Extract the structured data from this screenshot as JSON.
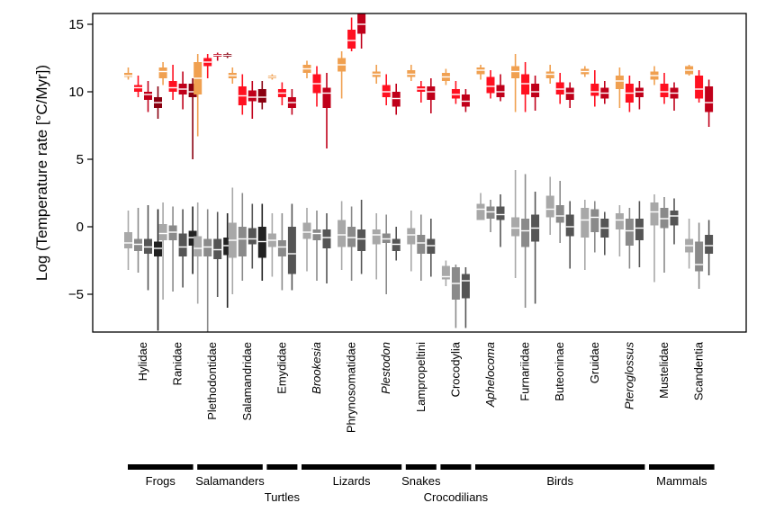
{
  "chart_data": {
    "type": "box",
    "title": "",
    "ylabel": "Log (Temperature rate [°C/Myr])",
    "ylim": [
      -7.8,
      15.8
    ],
    "yticks": [
      -5,
      0,
      5,
      10,
      15
    ],
    "grid": false,
    "colors": {
      "upper": [
        "#f0a050",
        "#ff1020",
        "#c0001a",
        "#8a0010"
      ],
      "lower": [
        "#a8a8a8",
        "#8a8a8a",
        "#555555",
        "#222222"
      ]
    },
    "categories": [
      {
        "label": "Hylidae",
        "italic": false,
        "upper": [
          [
            10.9,
            11.1,
            11.2,
            11.4,
            11.8
          ],
          [
            9.6,
            10.0,
            10.3,
            10.5,
            11.2
          ],
          [
            8.5,
            9.4,
            9.8,
            10.0,
            10.8
          ],
          [
            8.0,
            8.8,
            9.2,
            9.6,
            10.4
          ]
        ],
        "lower": [
          [
            -3.2,
            -1.6,
            -1.2,
            -0.4,
            1.2
          ],
          [
            -3.4,
            -1.8,
            -1.3,
            -0.9,
            1.4
          ],
          [
            -4.7,
            -2.0,
            -1.5,
            -0.9,
            1.6
          ],
          [
            -7.7,
            -2.2,
            -1.6,
            -1.1,
            1.3
          ]
        ]
      },
      {
        "label": "Ranidae",
        "italic": false,
        "upper": [
          [
            10.5,
            11.0,
            11.5,
            11.8,
            12.2
          ],
          [
            9.4,
            10.0,
            10.3,
            10.8,
            12.0
          ],
          [
            8.7,
            9.8,
            10.2,
            10.6,
            11.5
          ],
          [
            5.0,
            9.6,
            10.0,
            10.6,
            11.0
          ]
        ],
        "lower": [
          [
            -5.4,
            -1.0,
            -0.5,
            0.2,
            1.8
          ],
          [
            -4.8,
            -1.0,
            -0.4,
            0.1,
            1.5
          ],
          [
            -4.5,
            -2.2,
            -1.5,
            -0.5,
            1.3
          ],
          [
            -3.5,
            -1.4,
            -0.8,
            -0.3,
            1.5
          ]
        ]
      },
      {
        "label": "Plethodontidae",
        "italic": false,
        "upper": [
          [
            6.7,
            9.8,
            11.0,
            12.2,
            12.8
          ],
          [
            11.0,
            11.9,
            12.2,
            12.5,
            12.8
          ],
          [
            12.3,
            12.6,
            12.7,
            12.8,
            12.9
          ],
          [
            12.5,
            12.6,
            12.7,
            12.8,
            12.9
          ]
        ],
        "lower": [
          [
            -5.7,
            -2.2,
            -1.6,
            -0.7,
            1.8
          ],
          [
            -7.9,
            -2.2,
            -1.5,
            -0.9,
            1.3
          ],
          [
            -5.2,
            -2.4,
            -1.7,
            -0.9,
            1.1
          ],
          [
            -6.0,
            -2.1,
            -1.4,
            -0.8,
            1.0
          ]
        ]
      },
      {
        "label": "Salamandridae",
        "italic": false,
        "upper": [
          [
            10.6,
            11.0,
            11.2,
            11.4,
            11.8
          ],
          [
            8.3,
            9.0,
            9.7,
            10.4,
            11.3
          ],
          [
            8.0,
            9.3,
            9.6,
            10.1,
            10.8
          ],
          [
            8.7,
            9.2,
            9.6,
            10.2,
            10.8
          ]
        ],
        "lower": [
          [
            -5.0,
            -2.3,
            -1.0,
            0.3,
            2.9
          ],
          [
            -4.0,
            -2.2,
            -0.9,
            0.0,
            2.5
          ],
          [
            -3.1,
            -1.3,
            -0.9,
            -0.1,
            1.7
          ],
          [
            -4.0,
            -2.3,
            -1.1,
            0.0,
            1.7
          ]
        ]
      },
      {
        "label": "Emydidae",
        "italic": false,
        "upper": [
          [
            10.9,
            11.0,
            11.1,
            11.2,
            11.3
          ],
          [
            9.0,
            9.6,
            9.9,
            10.2,
            10.7
          ],
          [
            8.3,
            8.8,
            9.2,
            9.6,
            10.2
          ]
        ],
        "lower": [
          [
            -3.7,
            -1.5,
            -1.0,
            -0.5,
            1.0
          ],
          [
            -4.7,
            -2.2,
            -1.5,
            -1.0,
            1.0
          ],
          [
            -4.7,
            -3.5,
            -2.0,
            0.0,
            1.7
          ]
        ]
      },
      {
        "label": "Brookesia",
        "italic": true,
        "upper": [
          [
            11.0,
            11.4,
            11.7,
            12.0,
            12.3
          ],
          [
            8.9,
            9.9,
            10.6,
            11.3,
            11.9
          ],
          [
            5.8,
            8.8,
            9.9,
            10.3,
            11.4
          ]
        ],
        "lower": [
          [
            -3.3,
            -0.9,
            -0.4,
            0.3,
            1.4
          ],
          [
            -4.0,
            -1.0,
            -0.5,
            -0.2,
            1.2
          ],
          [
            -4.2,
            -1.6,
            -0.8,
            -0.2,
            1.0
          ]
        ]
      },
      {
        "label": "Phrynosomatidae",
        "italic": false,
        "upper": [
          [
            9.5,
            11.5,
            12.0,
            12.5,
            13.0
          ],
          [
            13.0,
            13.2,
            13.8,
            14.6,
            15.5
          ],
          [
            13.2,
            14.3,
            15.0,
            15.8,
            15.8
          ]
        ],
        "lower": [
          [
            -3.2,
            -1.5,
            -0.6,
            0.5,
            1.9
          ],
          [
            -4.0,
            -1.5,
            -0.8,
            0.0,
            1.5
          ],
          [
            -3.5,
            -1.8,
            -0.9,
            -0.2,
            2.0
          ]
        ]
      },
      {
        "label": "Plestodon",
        "italic": true,
        "upper": [
          [
            10.6,
            11.1,
            11.3,
            11.5,
            12.0
          ],
          [
            9.0,
            9.6,
            10.0,
            10.5,
            11.3
          ],
          [
            8.3,
            8.9,
            9.5,
            10.0,
            10.6
          ]
        ],
        "lower": [
          [
            -3.9,
            -1.3,
            -0.6,
            -0.2,
            1.0
          ],
          [
            -5.0,
            -1.2,
            -0.9,
            -0.5,
            0.9
          ],
          [
            -2.5,
            -1.8,
            -1.3,
            -0.9,
            0.0
          ]
        ]
      },
      {
        "label": "Lampropeltini",
        "italic": false,
        "upper": [
          [
            10.8,
            11.1,
            11.3,
            11.6,
            12.0
          ],
          [
            9.2,
            10.0,
            10.2,
            10.4,
            10.8
          ],
          [
            8.4,
            9.4,
            10.0,
            10.4,
            11.0
          ]
        ],
        "lower": [
          [
            -3.3,
            -1.3,
            -0.6,
            -0.1,
            1.2
          ],
          [
            -4.0,
            -2.0,
            -1.2,
            -0.6,
            0.9
          ],
          [
            -3.7,
            -2.0,
            -1.4,
            -0.9,
            0.6
          ]
        ]
      },
      {
        "label": "Crocodylia",
        "italic": false,
        "upper": [
          [
            10.5,
            10.8,
            11.1,
            11.4,
            11.7
          ],
          [
            9.1,
            9.5,
            9.8,
            10.2,
            10.8
          ],
          [
            8.5,
            8.9,
            9.3,
            9.8,
            10.2
          ]
        ],
        "lower": [
          [
            -4.4,
            -3.9,
            -3.7,
            -2.9,
            -2.5
          ],
          [
            -7.5,
            -5.4,
            -4.2,
            -3.0,
            -2.8
          ],
          [
            -7.5,
            -5.3,
            -4.0,
            -3.5,
            -3.0
          ]
        ]
      },
      {
        "label": "Aphelocoma",
        "italic": true,
        "upper": [
          [
            10.9,
            11.3,
            11.6,
            11.8,
            12.0
          ],
          [
            9.5,
            9.9,
            10.4,
            11.1,
            11.6
          ],
          [
            9.3,
            9.6,
            10.0,
            10.5,
            11.3
          ]
        ],
        "lower": [
          [
            0.5,
            0.5,
            1.3,
            1.7,
            2.5
          ],
          [
            -0.4,
            0.6,
            1.1,
            1.5,
            2.0
          ],
          [
            -1.5,
            0.5,
            0.9,
            1.5,
            2.4
          ]
        ]
      },
      {
        "label": "Furnariidae",
        "italic": false,
        "upper": [
          [
            8.5,
            11.0,
            11.5,
            11.9,
            12.8
          ],
          [
            8.5,
            9.8,
            10.6,
            11.3,
            12.2
          ],
          [
            8.6,
            9.6,
            10.0,
            10.6,
            11.2
          ]
        ],
        "lower": [
          [
            -3.8,
            -0.7,
            -0.1,
            0.7,
            4.2
          ],
          [
            -6.0,
            -1.5,
            -0.3,
            0.6,
            3.9
          ],
          [
            -5.7,
            -1.1,
            -0.1,
            0.9,
            2.6
          ]
        ]
      },
      {
        "label": "Buteoninae",
        "italic": false,
        "upper": [
          [
            10.6,
            11.0,
            11.3,
            11.5,
            12.0
          ],
          [
            9.1,
            9.8,
            10.2,
            10.7,
            11.4
          ],
          [
            8.8,
            9.4,
            9.9,
            10.3,
            10.7
          ]
        ],
        "lower": [
          [
            -0.6,
            0.7,
            1.3,
            2.3,
            3.7
          ],
          [
            -1.2,
            0.3,
            0.8,
            1.6,
            3.4
          ],
          [
            -3.1,
            -0.7,
            0.0,
            0.9,
            1.9
          ]
        ]
      },
      {
        "label": "Gruidae",
        "italic": false,
        "upper": [
          [
            11.1,
            11.3,
            11.5,
            11.7,
            11.9
          ],
          [
            8.9,
            9.7,
            10.0,
            10.6,
            11.6
          ],
          [
            9.1,
            9.5,
            9.9,
            10.3,
            10.8
          ]
        ],
        "lower": [
          [
            -3.2,
            -0.8,
            0.5,
            1.4,
            2.0
          ],
          [
            -1.9,
            -0.4,
            0.7,
            1.3,
            1.9
          ],
          [
            -2.1,
            -0.8,
            -0.1,
            0.6,
            1.1
          ]
        ]
      },
      {
        "label": "Pteroglossus",
        "italic": true,
        "upper": [
          [
            8.8,
            10.2,
            10.8,
            11.2,
            11.8
          ],
          [
            8.5,
            9.2,
            9.9,
            10.6,
            11.2
          ],
          [
            8.7,
            9.6,
            10.0,
            10.3,
            10.8
          ]
        ],
        "lower": [
          [
            -2.2,
            -0.2,
            0.5,
            1.0,
            1.6
          ],
          [
            -3.1,
            -1.4,
            -0.3,
            0.6,
            1.4
          ],
          [
            -3.0,
            -1.0,
            -0.1,
            0.6,
            1.9
          ]
        ]
      },
      {
        "label": "Mustelidae",
        "italic": false,
        "upper": [
          [
            10.5,
            10.9,
            11.2,
            11.5,
            11.9
          ],
          [
            9.1,
            9.6,
            10.0,
            10.6,
            11.4
          ],
          [
            8.6,
            9.5,
            9.9,
            10.3,
            10.7
          ]
        ],
        "lower": [
          [
            -4.1,
            0.1,
            1.1,
            1.8,
            2.4
          ],
          [
            -3.4,
            -0.1,
            0.6,
            1.4,
            2.2
          ],
          [
            -1.3,
            0.1,
            0.8,
            1.2,
            2.1
          ]
        ]
      },
      {
        "label": "Scandentia",
        "italic": false,
        "upper": [
          [
            11.2,
            11.3,
            11.6,
            11.9,
            12.0
          ],
          [
            9.2,
            9.5,
            10.2,
            11.2,
            11.6
          ],
          [
            7.4,
            8.5,
            9.2,
            10.4,
            10.9
          ]
        ],
        "lower": [
          [
            -3.1,
            -1.9,
            -1.4,
            -0.9,
            0.6
          ],
          [
            -4.6,
            -3.3,
            -2.8,
            -1.1,
            0.3
          ],
          [
            -3.6,
            -2.0,
            -1.4,
            -0.6,
            0.5
          ]
        ]
      }
    ],
    "groups": [
      {
        "label": "Frogs",
        "from": 0,
        "to": 1,
        "row": 0
      },
      {
        "label": "Salamanders",
        "from": 2,
        "to": 3,
        "row": 0
      },
      {
        "label": "Turtles",
        "from": 4,
        "to": 4,
        "row": 1
      },
      {
        "label": "Lizards",
        "from": 5,
        "to": 7,
        "row": 0
      },
      {
        "label": "Snakes",
        "from": 8,
        "to": 8,
        "row": 0
      },
      {
        "label": "Crocodilians",
        "from": 9,
        "to": 9,
        "row": 1
      },
      {
        "label": "Birds",
        "from": 10,
        "to": 14,
        "row": 0
      },
      {
        "label": "Mammals",
        "from": 15,
        "to": 16,
        "row": 0
      }
    ]
  }
}
